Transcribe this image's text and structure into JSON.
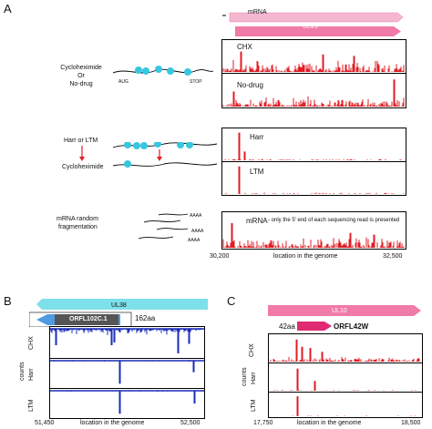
{
  "panelA": {
    "letter": "A",
    "schematic": {
      "row1_label_line1": "Cycloheximide",
      "row1_label_line2": "Or",
      "row1_label_line3": "No-drug",
      "aug_label": "AUG",
      "stop_label": "STOP",
      "row2_label1": "Harr or LTM",
      "row2_label2": "Cycloheximide",
      "row3_label1": "mRNA random",
      "row3_label2": "fragmentation",
      "aaaa_label": "AAAA"
    },
    "top_arrows": {
      "mrna_label": "mRNA",
      "gene_label": "UL25"
    },
    "tracks": [
      {
        "label": "CHX"
      },
      {
        "label": "No-drug"
      },
      {
        "label": "Harr"
      },
      {
        "label": "LTM"
      },
      {
        "label": "mRNA",
        "note": "- only the 5' end of each sequencing read is presented"
      }
    ],
    "x_start": "30,200",
    "x_end": "32,500",
    "x_label": "location in the genome",
    "colors": {
      "track": "#e01c24",
      "arrow": "#f08ab0"
    }
  },
  "panelB": {
    "letter": "B",
    "gene_label": "UL38",
    "orf_label": "ORFL102C.1",
    "orf_length": "162aa",
    "tracks": [
      {
        "label": "CHX"
      },
      {
        "label": "Harr"
      },
      {
        "label": "LTM"
      }
    ],
    "counts_label": "counts",
    "x_start": "51,450",
    "x_end": "52,500",
    "x_label": "location in the genome",
    "colors": {
      "track": "#1a2db8",
      "arrow": "#7ee0ea"
    }
  },
  "panelC": {
    "letter": "C",
    "gene_label": "UL10",
    "orf_label": "ORFL42W",
    "orf_length": "42aa",
    "tracks": [
      {
        "label": "CHX"
      },
      {
        "label": "Harr"
      },
      {
        "label": "LTM"
      }
    ],
    "counts_label": "counts",
    "x_start": "17,750",
    "x_end": "18,500",
    "x_label": "location in the genome",
    "colors": {
      "track": "#e01c24",
      "arrow": "#f08ab0"
    }
  }
}
